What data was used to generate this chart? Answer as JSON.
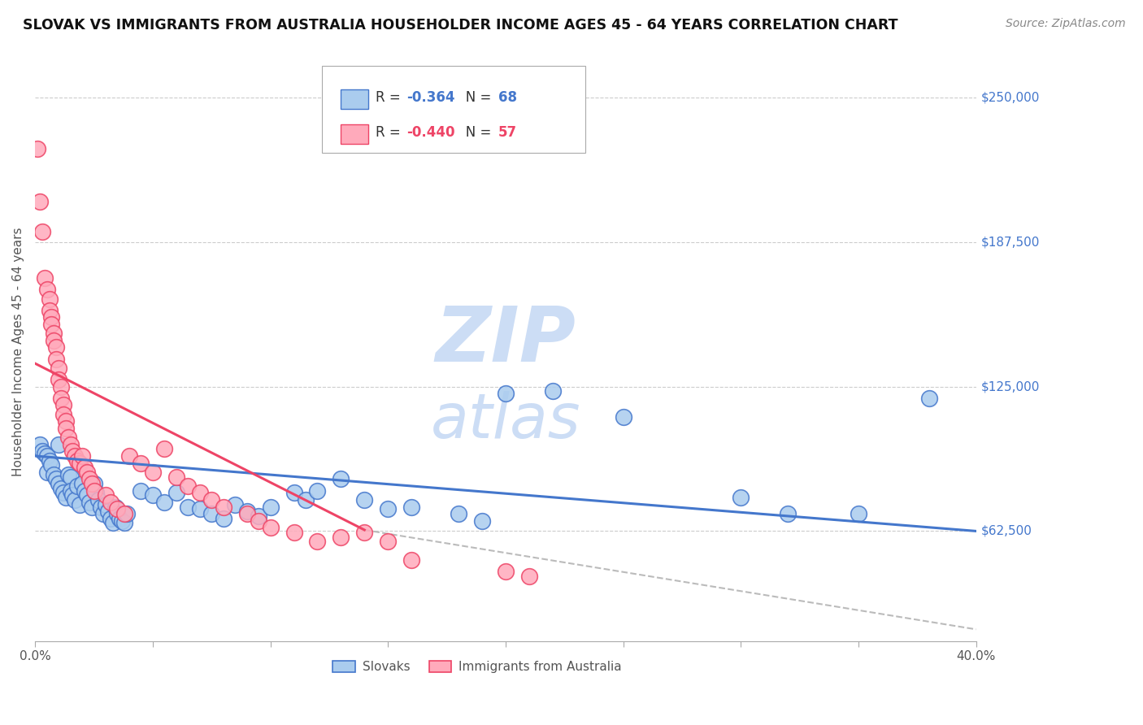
{
  "title": "SLOVAK VS IMMIGRANTS FROM AUSTRALIA HOUSEHOLDER INCOME AGES 45 - 64 YEARS CORRELATION CHART",
  "source": "Source: ZipAtlas.com",
  "ylabel": "Householder Income Ages 45 - 64 years",
  "ytick_labels": [
    "$62,500",
    "$125,000",
    "$187,500",
    "$250,000"
  ],
  "ytick_values": [
    62500,
    125000,
    187500,
    250000
  ],
  "xmin": 0.0,
  "xmax": 0.4,
  "ymin": 15000,
  "ymax": 265000,
  "legend_top": [
    {
      "label": "R = -0.364   N = 68",
      "color": "#6699cc"
    },
    {
      "label": "R = -0.440   N = 57",
      "color": "#ee5577"
    }
  ],
  "legend_labels_bottom": [
    "Slovaks",
    "Immigrants from Australia"
  ],
  "blue_scatter": [
    [
      0.002,
      100000
    ],
    [
      0.003,
      97000
    ],
    [
      0.004,
      96000
    ],
    [
      0.005,
      95000
    ],
    [
      0.005,
      88000
    ],
    [
      0.006,
      93000
    ],
    [
      0.007,
      91000
    ],
    [
      0.008,
      87000
    ],
    [
      0.009,
      85000
    ],
    [
      0.01,
      83000
    ],
    [
      0.01,
      100000
    ],
    [
      0.011,
      81000
    ],
    [
      0.012,
      79000
    ],
    [
      0.013,
      77000
    ],
    [
      0.014,
      87000
    ],
    [
      0.015,
      86000
    ],
    [
      0.015,
      80000
    ],
    [
      0.016,
      78000
    ],
    [
      0.017,
      76000
    ],
    [
      0.018,
      82000
    ],
    [
      0.019,
      74000
    ],
    [
      0.02,
      83000
    ],
    [
      0.021,
      80000
    ],
    [
      0.022,
      78000
    ],
    [
      0.023,
      75000
    ],
    [
      0.024,
      73000
    ],
    [
      0.025,
      83000
    ],
    [
      0.026,
      79000
    ],
    [
      0.027,
      76000
    ],
    [
      0.028,
      73000
    ],
    [
      0.029,
      70000
    ],
    [
      0.03,
      74000
    ],
    [
      0.031,
      71000
    ],
    [
      0.032,
      68000
    ],
    [
      0.033,
      66000
    ],
    [
      0.034,
      73000
    ],
    [
      0.035,
      70000
    ],
    [
      0.036,
      68000
    ],
    [
      0.037,
      67000
    ],
    [
      0.038,
      66000
    ],
    [
      0.039,
      70000
    ],
    [
      0.045,
      80000
    ],
    [
      0.05,
      78000
    ],
    [
      0.055,
      75000
    ],
    [
      0.06,
      79000
    ],
    [
      0.065,
      73000
    ],
    [
      0.07,
      72000
    ],
    [
      0.075,
      70000
    ],
    [
      0.08,
      68000
    ],
    [
      0.085,
      74000
    ],
    [
      0.09,
      71000
    ],
    [
      0.095,
      69000
    ],
    [
      0.1,
      73000
    ],
    [
      0.11,
      79000
    ],
    [
      0.115,
      76000
    ],
    [
      0.12,
      80000
    ],
    [
      0.13,
      85000
    ],
    [
      0.14,
      76000
    ],
    [
      0.15,
      72000
    ],
    [
      0.16,
      73000
    ],
    [
      0.18,
      70000
    ],
    [
      0.19,
      67000
    ],
    [
      0.2,
      122000
    ],
    [
      0.22,
      123000
    ],
    [
      0.25,
      112000
    ],
    [
      0.3,
      77000
    ],
    [
      0.32,
      70000
    ],
    [
      0.35,
      70000
    ],
    [
      0.38,
      120000
    ]
  ],
  "pink_scatter": [
    [
      0.001,
      228000
    ],
    [
      0.002,
      205000
    ],
    [
      0.003,
      192000
    ],
    [
      0.004,
      172000
    ],
    [
      0.005,
      167000
    ],
    [
      0.006,
      163000
    ],
    [
      0.006,
      158000
    ],
    [
      0.007,
      155000
    ],
    [
      0.007,
      152000
    ],
    [
      0.008,
      148000
    ],
    [
      0.008,
      145000
    ],
    [
      0.009,
      142000
    ],
    [
      0.009,
      137000
    ],
    [
      0.01,
      133000
    ],
    [
      0.01,
      128000
    ],
    [
      0.011,
      125000
    ],
    [
      0.011,
      120000
    ],
    [
      0.012,
      117000
    ],
    [
      0.012,
      113000
    ],
    [
      0.013,
      110000
    ],
    [
      0.013,
      107000
    ],
    [
      0.014,
      103000
    ],
    [
      0.015,
      100000
    ],
    [
      0.016,
      97000
    ],
    [
      0.017,
      95000
    ],
    [
      0.018,
      93000
    ],
    [
      0.019,
      92000
    ],
    [
      0.02,
      95000
    ],
    [
      0.021,
      90000
    ],
    [
      0.022,
      88000
    ],
    [
      0.023,
      85000
    ],
    [
      0.024,
      83000
    ],
    [
      0.025,
      80000
    ],
    [
      0.03,
      78000
    ],
    [
      0.032,
      75000
    ],
    [
      0.035,
      72000
    ],
    [
      0.038,
      70000
    ],
    [
      0.04,
      95000
    ],
    [
      0.045,
      92000
    ],
    [
      0.05,
      88000
    ],
    [
      0.055,
      98000
    ],
    [
      0.06,
      86000
    ],
    [
      0.065,
      82000
    ],
    [
      0.07,
      79000
    ],
    [
      0.075,
      76000
    ],
    [
      0.08,
      73000
    ],
    [
      0.09,
      70000
    ],
    [
      0.095,
      67000
    ],
    [
      0.1,
      64000
    ],
    [
      0.11,
      62000
    ],
    [
      0.12,
      58000
    ],
    [
      0.13,
      60000
    ],
    [
      0.14,
      62000
    ],
    [
      0.15,
      58000
    ],
    [
      0.16,
      50000
    ],
    [
      0.2,
      45000
    ],
    [
      0.21,
      43000
    ]
  ],
  "blue_line": {
    "x": [
      0.0,
      0.4
    ],
    "y": [
      95000,
      62500
    ]
  },
  "pink_line": {
    "x": [
      0.0,
      0.14
    ],
    "y": [
      135000,
      63000
    ]
  },
  "pink_dashed_ext": {
    "x": [
      0.14,
      0.4
    ],
    "y": [
      63000,
      20000
    ]
  },
  "blue_color": "#4477cc",
  "pink_color": "#ee4466",
  "blue_scatter_fill": "#aaccee",
  "pink_scatter_fill": "#ffaabb",
  "background_color": "#ffffff",
  "grid_color": "#cccccc",
  "watermark_color": "#ccddf5",
  "title_fontsize": 12.5,
  "axis_label_fontsize": 11,
  "tick_label_fontsize": 11,
  "source_fontsize": 10
}
